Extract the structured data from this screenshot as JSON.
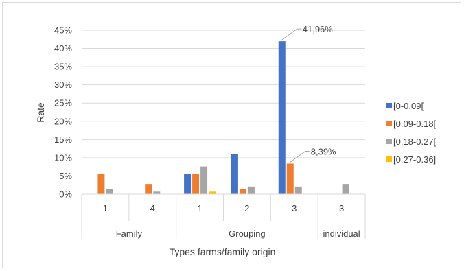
{
  "chart_data": {
    "type": "bar",
    "title": "",
    "ylabel": "Rate",
    "xlabel": "Types farms/family origin",
    "ylim": [
      0,
      45
    ],
    "ytick_step": 5,
    "yticks": [
      "0%",
      "5%",
      "10%",
      "15%",
      "20%",
      "25%",
      "30%",
      "35%",
      "40%",
      "45%"
    ],
    "grid": true,
    "legend_position": "right",
    "groups": [
      {
        "label": "Family",
        "categories": [
          "1",
          "4"
        ]
      },
      {
        "label": "Grouping",
        "categories": [
          "1",
          "2",
          "3"
        ]
      },
      {
        "label": "individual",
        "categories": [
          "3"
        ]
      }
    ],
    "categories": [
      "Family 1",
      "Family 4",
      "Grouping 1",
      "Grouping 2",
      "Grouping 3",
      "individual 3"
    ],
    "series": [
      {
        "name": "[0-0.09[",
        "color": "#4472c4",
        "values": [
          0,
          0,
          5.5,
          11.1,
          41.96,
          0
        ]
      },
      {
        "name": "[0.09-0.18[",
        "color": "#ed7d31",
        "values": [
          5.6,
          2.8,
          5.6,
          1.4,
          8.39,
          0
        ]
      },
      {
        "name": "[0.18-0.27[",
        "color": "#a5a5a5",
        "values": [
          1.4,
          0.7,
          7.6,
          2.1,
          2.1,
          2.8
        ]
      },
      {
        "name": "[0.27-0.36]",
        "color": "#ffc000",
        "values": [
          0,
          0,
          0.7,
          0,
          0,
          0
        ]
      }
    ],
    "annotations": [
      {
        "text": "41,96%",
        "series": 0,
        "category": 4
      },
      {
        "text": "8,39%",
        "series": 1,
        "category": 4
      }
    ]
  }
}
